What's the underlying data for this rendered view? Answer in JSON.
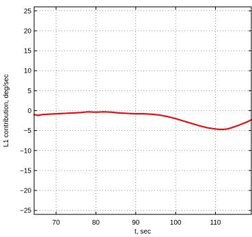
{
  "chart_data": {
    "type": "line",
    "title": "",
    "xlabel": "t, sec",
    "ylabel": "L1 contribution, deg/sec",
    "xlim": [
      64.5,
      119
    ],
    "ylim": [
      -26,
      26
    ],
    "xticks": [
      70,
      80,
      90,
      100,
      110
    ],
    "yticks": [
      -25,
      -20,
      -15,
      -10,
      -5,
      0,
      5,
      10,
      15,
      20,
      25
    ],
    "grid": true,
    "series": [
      {
        "color": "#ee1111",
        "x": [
          64.5,
          65.5,
          66.5,
          68,
          70,
          72,
          74,
          76,
          78,
          80,
          82,
          84,
          86,
          88,
          90,
          92,
          94,
          96,
          98,
          100,
          102,
          104,
          106,
          108,
          110,
          111,
          112,
          113,
          114,
          116,
          118,
          119
        ],
        "y": [
          -1.0,
          -1.2,
          -1.0,
          -0.9,
          -0.8,
          -0.7,
          -0.6,
          -0.5,
          -0.3,
          -0.4,
          -0.3,
          -0.4,
          -0.6,
          -0.7,
          -0.8,
          -0.8,
          -0.9,
          -1.1,
          -1.5,
          -2.0,
          -2.6,
          -3.2,
          -3.8,
          -4.3,
          -4.6,
          -4.7,
          -4.7,
          -4.6,
          -4.3,
          -3.6,
          -2.8,
          -2.3
        ]
      }
    ]
  }
}
